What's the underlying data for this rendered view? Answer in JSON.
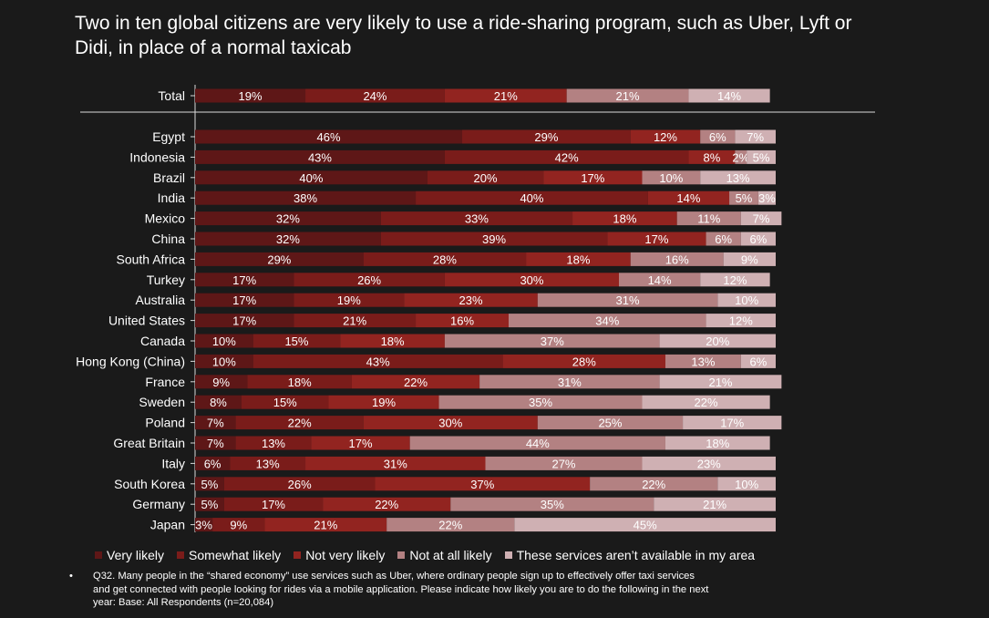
{
  "title": "Two in ten global citizens are very likely to use a ride-sharing program, such as Uber, Lyft or Didi, in place of a normal taxicab",
  "colors": [
    "#5e1717",
    "#7a1c1a",
    "#922420",
    "#b38182",
    "#cfb0b3"
  ],
  "chart_data": {
    "type": "bar",
    "orientation": "horizontal",
    "stacked": true,
    "categories": [
      "Total",
      "Egypt",
      "Indonesia",
      "Brazil",
      "India",
      "Mexico",
      "China",
      "South Africa",
      "Turkey",
      "Australia",
      "United States",
      "Canada",
      "Hong Kong (China)",
      "France",
      "Sweden",
      "Poland",
      "Great Britain",
      "Italy",
      "South Korea",
      "Germany",
      "Japan"
    ],
    "series": [
      {
        "name": "Very likely",
        "values": [
          19,
          46,
          43,
          40,
          38,
          32,
          32,
          29,
          17,
          17,
          17,
          10,
          10,
          9,
          8,
          7,
          7,
          6,
          5,
          5,
          3
        ]
      },
      {
        "name": "Somewhat likely",
        "values": [
          24,
          29,
          42,
          20,
          40,
          33,
          39,
          28,
          26,
          19,
          21,
          15,
          43,
          18,
          15,
          22,
          13,
          13,
          26,
          17,
          9
        ]
      },
      {
        "name": "Not very likely",
        "values": [
          21,
          12,
          8,
          17,
          14,
          18,
          17,
          18,
          30,
          23,
          16,
          18,
          28,
          22,
          19,
          30,
          17,
          31,
          37,
          22,
          21
        ]
      },
      {
        "name": "Not at all likely",
        "values": [
          21,
          6,
          2,
          10,
          5,
          11,
          6,
          16,
          14,
          31,
          34,
          37,
          13,
          31,
          35,
          25,
          44,
          27,
          22,
          35,
          22
        ]
      },
      {
        "name": "These services aren’t available in my area",
        "values": [
          14,
          7,
          5,
          13,
          3,
          7,
          6,
          9,
          12,
          10,
          12,
          20,
          6,
          21,
          22,
          17,
          18,
          23,
          10,
          21,
          45
        ]
      }
    ],
    "labels": [
      [
        "19%",
        "24%",
        "21%",
        "21%",
        "14%"
      ],
      [
        "46%",
        "29%",
        "12%",
        "6%",
        "7%"
      ],
      [
        "43%",
        "42%",
        "8%",
        "2%",
        "5%"
      ],
      [
        "40%",
        "20%",
        "17%",
        "10%",
        "13%"
      ],
      [
        "38%",
        "40%",
        "14%",
        "5%",
        "3%"
      ],
      [
        "32%",
        "33%",
        "18%",
        "11%",
        "7%"
      ],
      [
        "32%",
        "39%",
        "17%",
        "6%",
        "6%"
      ],
      [
        "29%",
        "28%",
        "18%",
        "16%",
        "9%"
      ],
      [
        "17%",
        "26%",
        "30%",
        "14%",
        "12%"
      ],
      [
        "17%",
        "19%",
        "23%",
        "31%",
        "10%"
      ],
      [
        "17%",
        "21%",
        "16%",
        "34%",
        "12%"
      ],
      [
        "10%",
        "15%",
        "18%",
        "37%",
        "20%"
      ],
      [
        "10%",
        "43%",
        "28%",
        "13%",
        "6%"
      ],
      [
        "9%",
        "18%",
        "22%",
        "31%",
        "21%"
      ],
      [
        "8%",
        "15%",
        "19%",
        "35%",
        "22%"
      ],
      [
        "7%",
        "22%",
        "30%",
        "25%",
        "17%"
      ],
      [
        "7%",
        "13%",
        "17%",
        "44%",
        "18%"
      ],
      [
        "6%",
        "13%",
        "31%",
        "27%",
        "23%"
      ],
      [
        "5%",
        "26%",
        "37%",
        "22%",
        "10%"
      ],
      [
        "5%",
        "17%",
        "22%",
        "35%",
        "21%"
      ],
      [
        "3%",
        "9%",
        "21%",
        "22%",
        "45%"
      ]
    ],
    "xlim": [
      0,
      100
    ],
    "legend_position": "bottom"
  },
  "footnote": {
    "bullet": "•",
    "text": "Q32.  Many people in the “shared economy” use services such as Uber, where ordinary people sign up to effectively offer taxi services and get connected with people looking for rides via a mobile application. Please indicate how likely you are to do the following in the next year: Base: All Respondents (n=20,084)"
  }
}
